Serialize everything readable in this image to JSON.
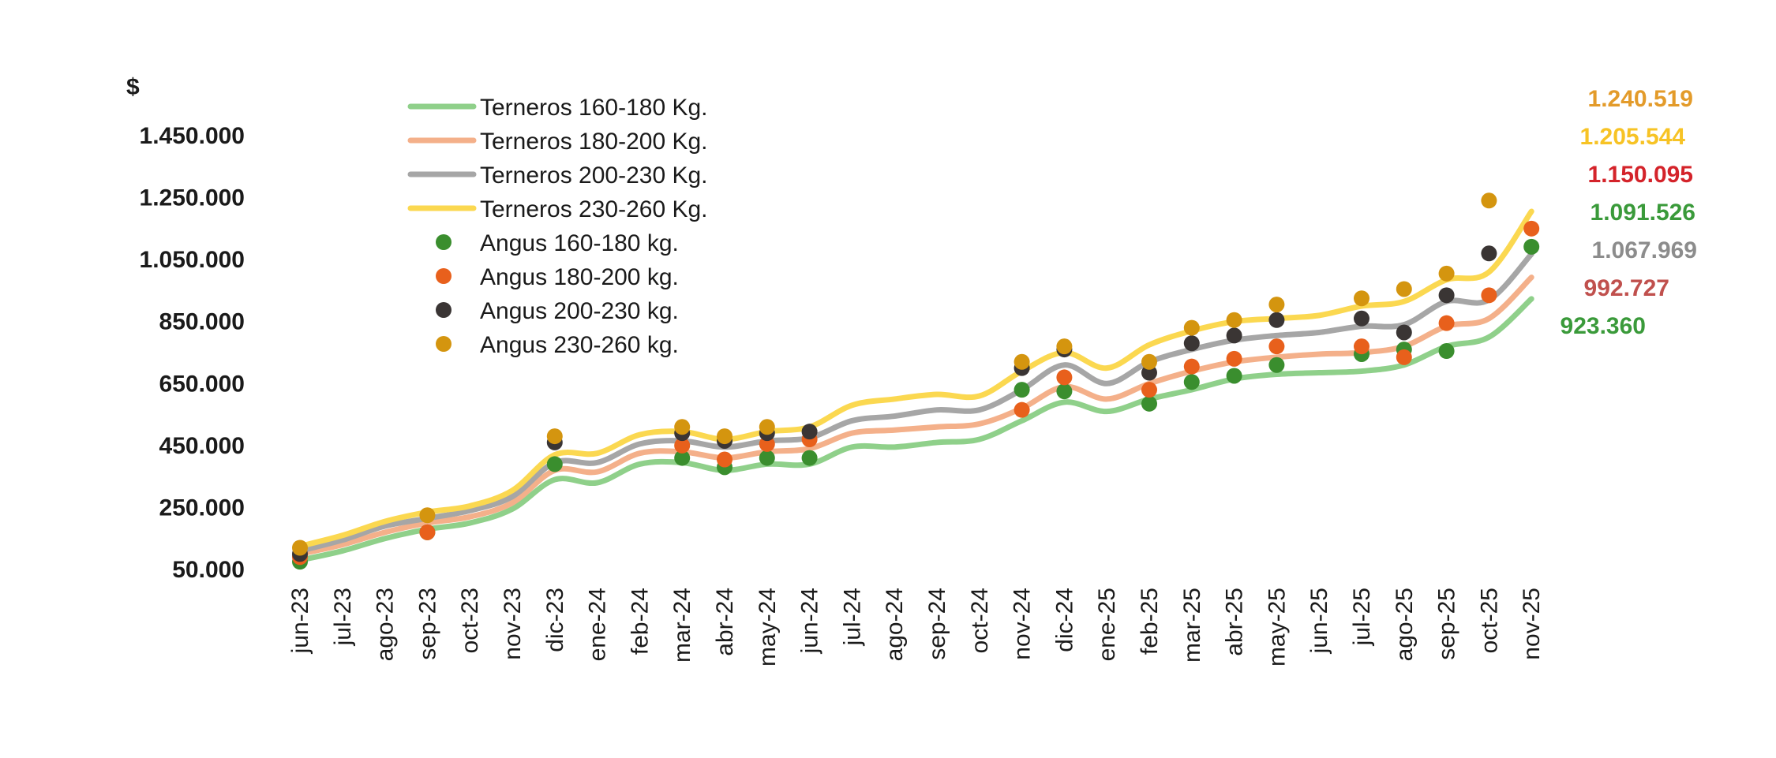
{
  "chart_data": {
    "type": "line",
    "ylabel": "$",
    "ylim": [
      50000,
      1450000
    ],
    "yticks": [
      "1.450.000",
      "1.250.000",
      "1.050.000",
      "850.000",
      "650.000",
      "450.000",
      "250.000",
      "50.000"
    ],
    "ytick_values": [
      1450000,
      1250000,
      1050000,
      850000,
      650000,
      450000,
      250000,
      50000
    ],
    "categories": [
      "jun-23",
      "jul-23",
      "ago-23",
      "sep-23",
      "oct-23",
      "nov-23",
      "dic-23",
      "ene-24",
      "feb-24",
      "mar-24",
      "abr-24",
      "may-24",
      "jun-24",
      "jul-24",
      "ago-24",
      "sep-24",
      "oct-24",
      "nov-24",
      "dic-24",
      "ene-25",
      "feb-25",
      "mar-25",
      "abr-25",
      "may-25",
      "jun-25",
      "jul-25",
      "ago-25",
      "sep-25",
      "oct-25",
      "nov-25"
    ],
    "legend_position": "top-left",
    "grid": false,
    "series": [
      {
        "name": "Terneros 160-180 Kg.",
        "kind": "line",
        "color": "#8fd08a",
        "values": [
          80000,
          110000,
          150000,
          180000,
          200000,
          245000,
          340000,
          330000,
          390000,
          395000,
          370000,
          390000,
          390000,
          445000,
          445000,
          460000,
          470000,
          530000,
          590000,
          560000,
          600000,
          630000,
          665000,
          680000,
          685000,
          690000,
          710000,
          770000,
          800000,
          923360
        ]
      },
      {
        "name": "Terneros 180-200 Kg.",
        "kind": "line",
        "color": "#f4b08a",
        "values": [
          100000,
          130000,
          170000,
          200000,
          220000,
          265000,
          370000,
          365000,
          425000,
          430000,
          410000,
          430000,
          440000,
          490000,
          500000,
          510000,
          520000,
          570000,
          640000,
          600000,
          650000,
          690000,
          720000,
          735000,
          745000,
          750000,
          770000,
          835000,
          860000,
          992727
        ]
      },
      {
        "name": "Terneros 200-230 Kg.",
        "kind": "line",
        "color": "#a6a6a6",
        "values": [
          110000,
          145000,
          190000,
          215000,
          240000,
          285000,
          395000,
          395000,
          455000,
          465000,
          445000,
          465000,
          475000,
          530000,
          545000,
          565000,
          565000,
          630000,
          710000,
          650000,
          720000,
          760000,
          790000,
          805000,
          815000,
          835000,
          840000,
          915000,
          920000,
          1067969
        ]
      },
      {
        "name": "Terneros 230-260 Kg.",
        "kind": "line",
        "color": "#fbd850",
        "values": [
          125000,
          160000,
          205000,
          235000,
          255000,
          305000,
          420000,
          425000,
          485000,
          495000,
          470000,
          495000,
          510000,
          580000,
          600000,
          615000,
          610000,
          690000,
          750000,
          700000,
          775000,
          820000,
          850000,
          860000,
          870000,
          900000,
          915000,
          985000,
          1010000,
          1205544
        ]
      },
      {
        "name": "Angus 160-180 kg.",
        "kind": "dots",
        "color": "#3a8e2e",
        "values": [
          75000,
          null,
          null,
          170000,
          null,
          null,
          390000,
          null,
          null,
          410000,
          380000,
          410000,
          410000,
          null,
          null,
          null,
          null,
          630000,
          625000,
          null,
          585000,
          655000,
          675000,
          710000,
          null,
          745000,
          760000,
          755000,
          null,
          1091526
        ]
      },
      {
        "name": "Angus 180-200 kg.",
        "kind": "dots",
        "color": "#e8601c",
        "values": [
          90000,
          null,
          null,
          170000,
          null,
          null,
          null,
          null,
          null,
          450000,
          405000,
          455000,
          470000,
          null,
          null,
          null,
          null,
          565000,
          670000,
          null,
          630000,
          705000,
          730000,
          770000,
          null,
          770000,
          735000,
          845000,
          935000,
          1150095
        ]
      },
      {
        "name": "Angus 200-230 kg.",
        "kind": "dots",
        "color": "#3a3534",
        "values": [
          100000,
          null,
          null,
          null,
          null,
          null,
          460000,
          null,
          null,
          490000,
          465000,
          490000,
          495000,
          null,
          null,
          null,
          null,
          700000,
          760000,
          null,
          685000,
          780000,
          805000,
          855000,
          null,
          860000,
          815000,
          935000,
          1070000,
          null
        ]
      },
      {
        "name": "Angus 230-260 kg.",
        "kind": "dots",
        "color": "#d4950f",
        "values": [
          120000,
          null,
          null,
          225000,
          null,
          null,
          480000,
          null,
          null,
          510000,
          480000,
          510000,
          null,
          null,
          null,
          null,
          null,
          720000,
          770000,
          null,
          720000,
          830000,
          855000,
          905000,
          null,
          925000,
          955000,
          1005000,
          1240519,
          null
        ]
      }
    ],
    "end_labels": [
      {
        "text": "1.240.519",
        "color": "#e39b2a"
      },
      {
        "text": "1.205.544",
        "color": "#f7c325"
      },
      {
        "text": "1.150.095",
        "color": "#d4232a"
      },
      {
        "text": "1.091.526",
        "color": "#3a9a3a"
      },
      {
        "text": "1.067.969",
        "color": "#8c8c8c"
      },
      {
        "text": "992.727",
        "color": "#c0504d"
      },
      {
        "text": "923.360",
        "color": "#3a9a3a"
      }
    ]
  }
}
